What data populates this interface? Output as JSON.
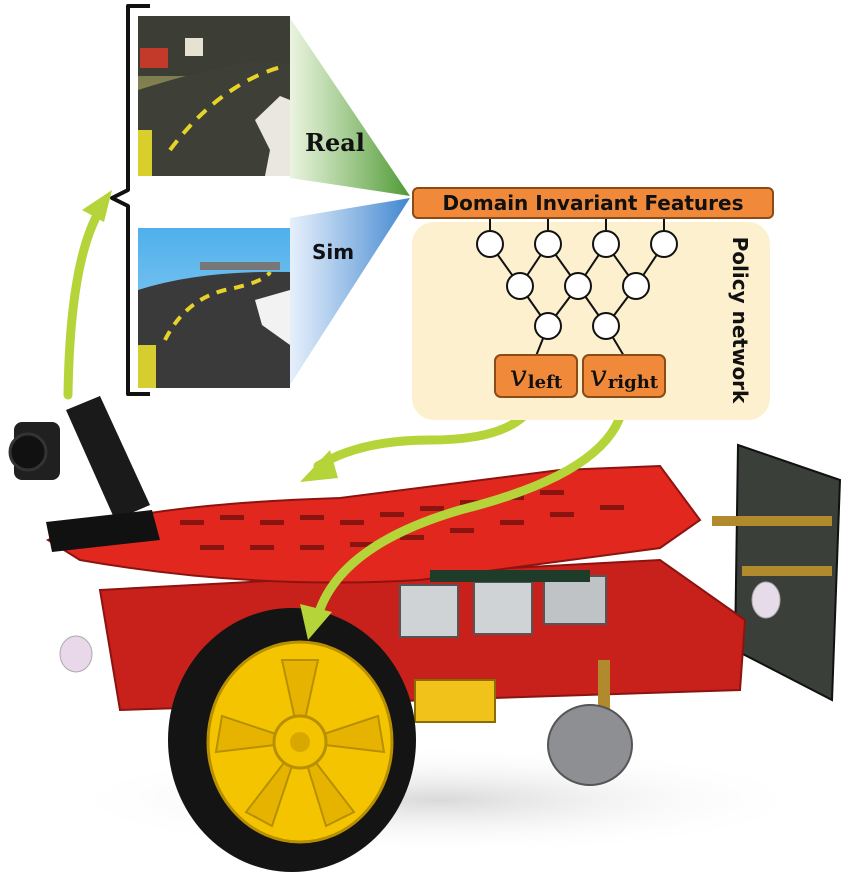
{
  "labels": {
    "real": "Real",
    "sim": "Sim",
    "features": "Domain Invariant Features",
    "policy": "Policy network",
    "v_left_symbol": "v",
    "v_left_sub": "left",
    "v_right_symbol": "v",
    "v_right_sub": "right"
  },
  "colors": {
    "orange_box": "#f08a3a",
    "policy_bg": "#fdf0cf",
    "arrow_green": "#b5d43a",
    "real_wedge": "#6fb04a",
    "sim_wedge": "#5a9ad8",
    "robot_red": "#d8281e",
    "wheel_yellow": "#f5c400"
  },
  "images": {
    "real_view": "real-road-camera-view",
    "sim_view": "simulated-road-camera-view",
    "robot": "red-wheeled-robot-with-camera"
  }
}
